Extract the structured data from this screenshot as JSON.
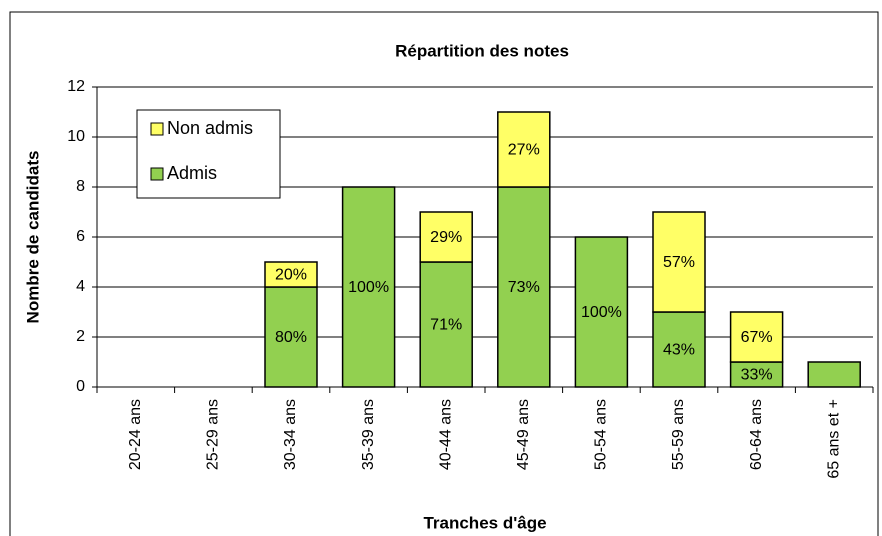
{
  "chart_data": {
    "type": "stacked_bar",
    "title": "Répartition des notes",
    "x_label": "Tranches d'âge",
    "y_label": "Nombre de candidats",
    "categories": [
      "20-24 ans",
      "25-29 ans",
      "30-34 ans",
      "35-39 ans",
      "40-44 ans",
      "45-49 ans",
      "50-54 ans",
      "55-59 ans",
      "60-64 ans",
      "65 ans et +"
    ],
    "series": [
      {
        "name": "Admis",
        "color": "#92d050",
        "values": [
          0,
          0,
          4,
          8,
          5,
          8,
          6,
          3,
          1,
          1
        ],
        "value_labels": [
          null,
          null,
          "80%",
          "100%",
          "71%",
          "73%",
          "100%",
          "43%",
          "33%",
          null
        ]
      },
      {
        "name": "Non admis",
        "color": "#ffff66",
        "values": [
          0,
          0,
          1,
          0,
          2,
          3,
          0,
          4,
          2,
          0
        ],
        "value_labels": [
          null,
          null,
          "20%",
          null,
          "29%",
          "27%",
          null,
          "57%",
          "67%",
          null
        ]
      }
    ],
    "ylim": [
      0,
      12
    ],
    "yticks": [
      0,
      2,
      4,
      6,
      8,
      10,
      12
    ],
    "grid": true,
    "legend": "top-left"
  }
}
